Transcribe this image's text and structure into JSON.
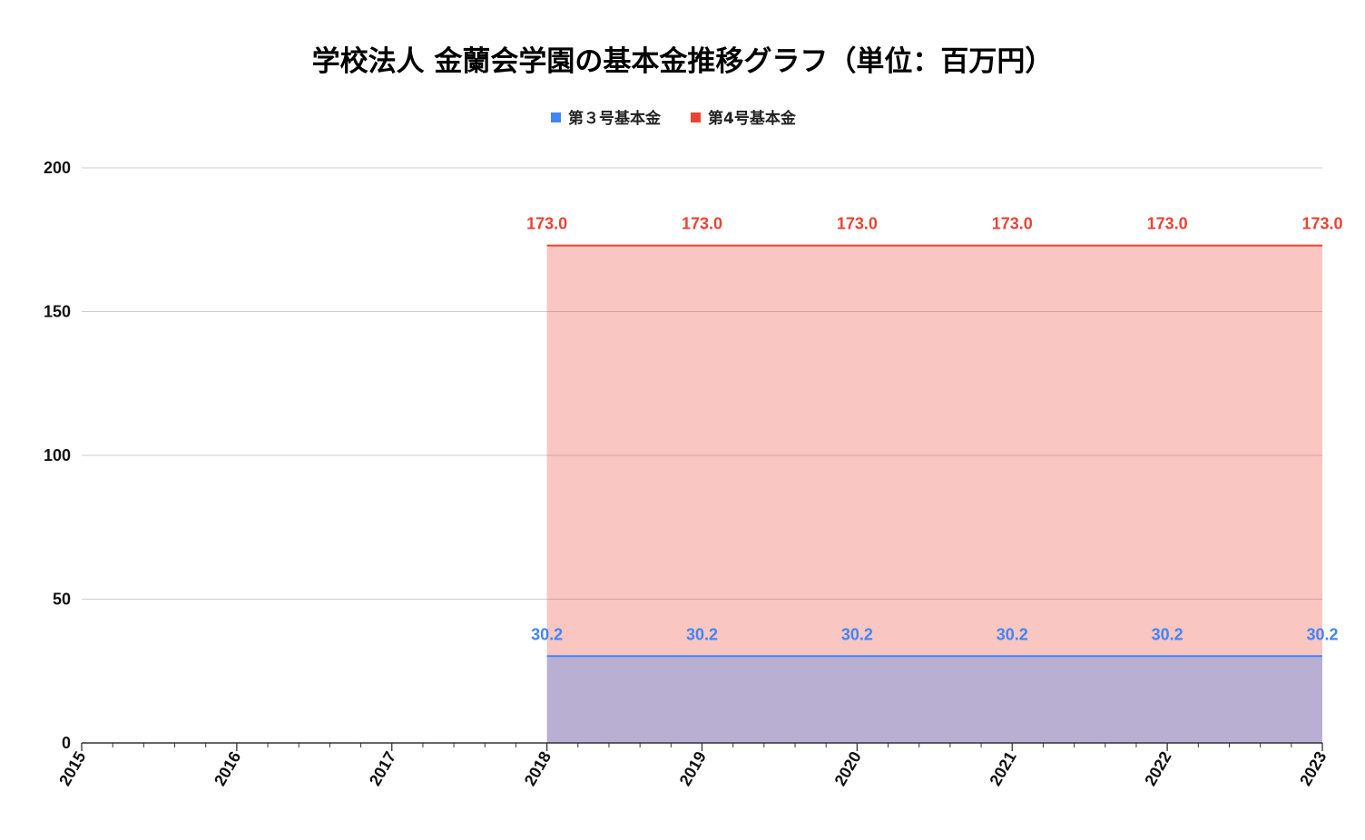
{
  "chart_data": {
    "type": "area",
    "title": "学校法人 金蘭会学園の基本金推移グラフ（単位：百万円）",
    "xlabel": "",
    "ylabel": "",
    "x": [
      "2015",
      "2016",
      "2017",
      "2018",
      "2019",
      "2020",
      "2021",
      "2022",
      "2023"
    ],
    "ylim": [
      0,
      200
    ],
    "yticks": [
      0,
      50,
      100,
      150,
      200
    ],
    "grid": true,
    "legend_position": "top",
    "series": [
      {
        "name": "第３号基本金",
        "color": "#4285f4",
        "values": [
          null,
          null,
          null,
          30.2,
          30.2,
          30.2,
          30.2,
          30.2,
          30.2
        ],
        "labels": [
          "",
          "",
          "",
          "30.2",
          "30.2",
          "30.2",
          "30.2",
          "30.2",
          "30.2"
        ]
      },
      {
        "name": "第4号基本金",
        "color": "#ea4335",
        "values": [
          null,
          null,
          null,
          173.0,
          173.0,
          173.0,
          173.0,
          173.0,
          173.0
        ],
        "labels": [
          "",
          "",
          "",
          "173.0",
          "173.0",
          "173.0",
          "173.0",
          "173.0",
          "173.0"
        ]
      }
    ]
  }
}
